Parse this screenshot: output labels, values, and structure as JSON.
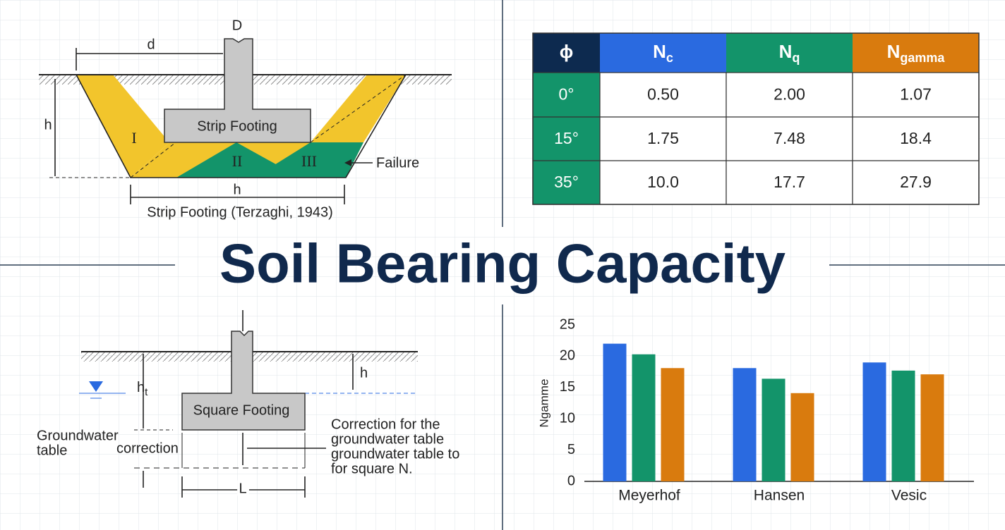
{
  "title": "Soil Bearing Capacity",
  "strip_diagram": {
    "column_label": "D",
    "width_label": "d",
    "depth_label": "h",
    "footing_label": "Strip Footing",
    "zone_1": "I",
    "zone_2": "II",
    "zone_3": "III",
    "failure_label": "Failure",
    "base_label": "h",
    "caption": "Strip Footing (Terzaghi, 1943)"
  },
  "square_diagram": {
    "depth_label": {
      "text": "h",
      "sub": "t"
    },
    "water_depth_label": "h",
    "footing_label": "Square Footing",
    "groundwater_label": [
      "Groundwater",
      "table"
    ],
    "correction_label": "correction",
    "note": [
      "Correction for the",
      "groundwater table",
      "groundwater table to",
      "for square N."
    ],
    "width_label": "L"
  },
  "table": {
    "header": [
      {
        "text": "ϕ"
      },
      {
        "text": "N",
        "sub": "c"
      },
      {
        "text": "N",
        "sub": "q"
      },
      {
        "text": "N",
        "sub": "gamma"
      }
    ],
    "header_colors": [
      "#0d2a4f",
      "#2a6ae0",
      "#13946a",
      "#d97b0e"
    ],
    "rows": [
      [
        "0°",
        "0.50",
        "2.00",
        "1.07"
      ],
      [
        "15°",
        "1.75",
        "7.48",
        "18.4"
      ],
      [
        "35°",
        "10.0",
        "17.7",
        "27.9"
      ]
    ]
  },
  "chart_data": {
    "type": "bar",
    "y_label": "Ngamme",
    "categories": [
      "Meyerhof",
      "Hansen",
      "Vesic"
    ],
    "series": [
      {
        "color": "#2a6ae0",
        "values": [
          22,
          18.1,
          19
        ]
      },
      {
        "color": "#13946a",
        "values": [
          20.3,
          16.4,
          17.7
        ]
      },
      {
        "color": "#d97b0e",
        "values": [
          18.1,
          14.1,
          17.1
        ]
      }
    ],
    "ylim": [
      0,
      25
    ],
    "yticks": [
      0,
      5,
      10,
      15,
      20,
      25
    ],
    "grid": false
  }
}
